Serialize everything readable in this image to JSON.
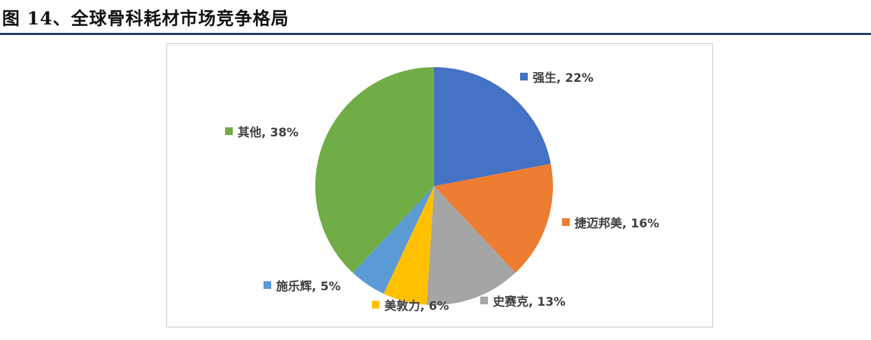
{
  "header": {
    "title": "图 14、全球骨科耗材市场竞争格局"
  },
  "chart_data": {
    "type": "pie",
    "title": "图 14、全球骨科耗材市场竞争格局",
    "labels": [
      "强生",
      "捷迈邦美",
      "史赛克",
      "美敦力",
      "施乐辉",
      "其他"
    ],
    "values": [
      22,
      16,
      13,
      6,
      5,
      38
    ],
    "unit": "%",
    "colors": [
      "#4472C4",
      "#ED7D31",
      "#A5A5A5",
      "#FFC000",
      "#5B9BD5",
      "#70AD47"
    ],
    "start_angle_deg": 0,
    "direction": "clockwise",
    "legend_position": "around-slices",
    "data_labels": [
      "强生, 22%",
      "捷迈邦美, 16%",
      "史赛克, 13%",
      "美敦力, 6%",
      "施乐辉, 5%",
      "其他, 38%"
    ]
  },
  "theme": {
    "rule_color": "#1F3864",
    "label_color": "#404040",
    "box_border_color": "#C9C9C9"
  }
}
